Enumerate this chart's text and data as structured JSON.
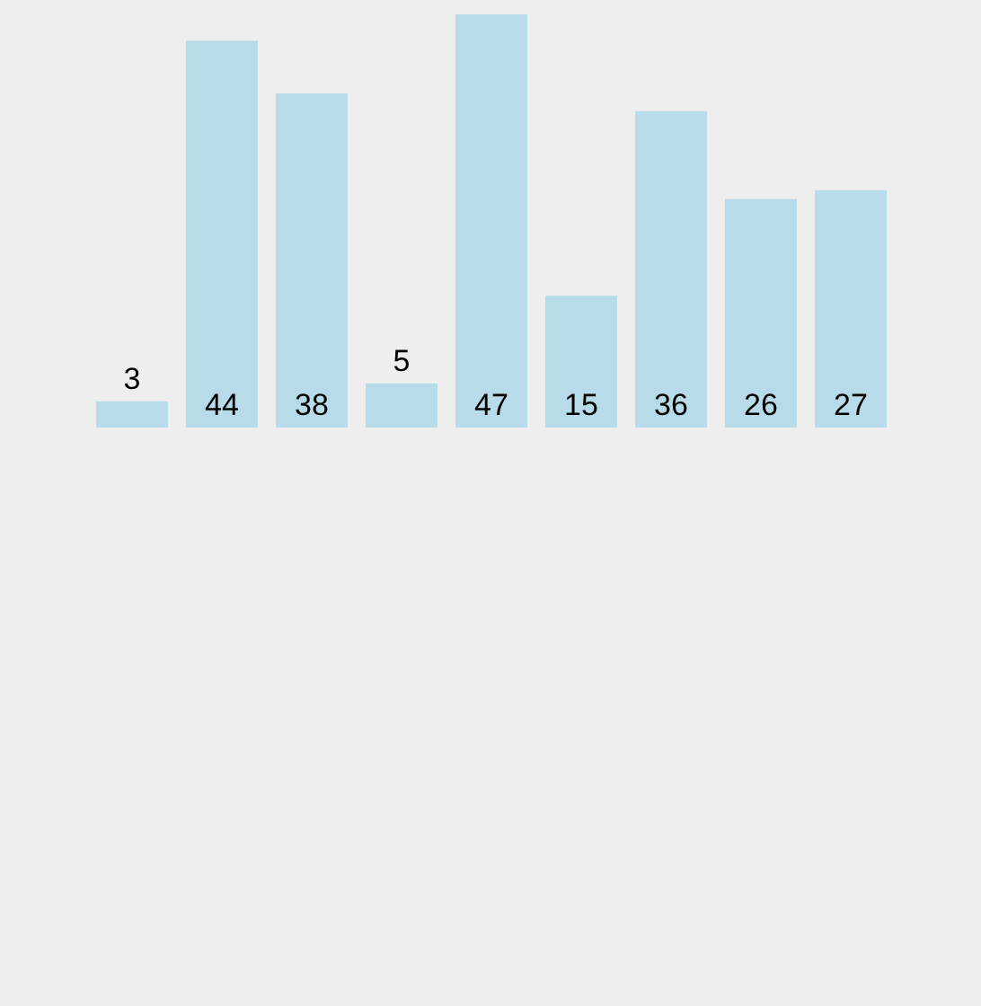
{
  "chart_data": {
    "type": "bar",
    "categories": [
      null,
      null,
      null,
      null,
      null,
      null,
      null,
      null,
      null
    ],
    "values": [
      3,
      44,
      38,
      5,
      47,
      15,
      36,
      26,
      27
    ],
    "color": "#b7dbe9",
    "data_labels": true
  }
}
